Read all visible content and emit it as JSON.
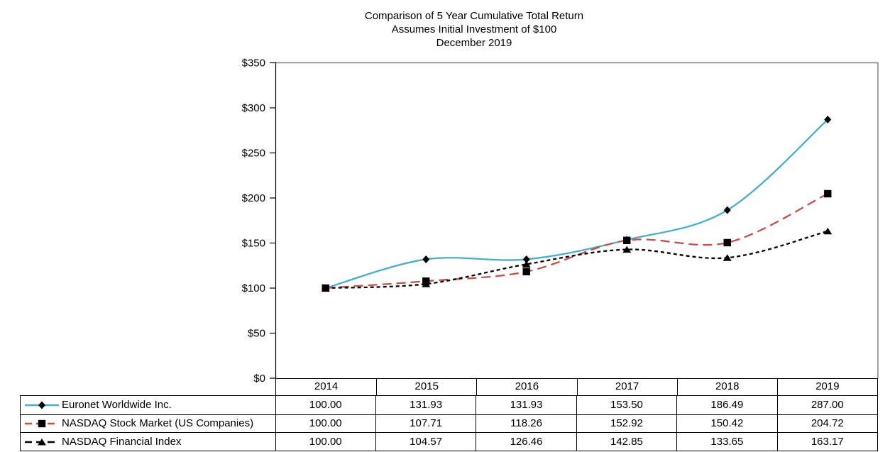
{
  "title": {
    "line1": "Comparison of 5 Year Cumulative Total Return",
    "line2": "Assumes Initial Investment of $100",
    "line3": "December 2019"
  },
  "chart_data": {
    "type": "line",
    "categories": [
      "2014",
      "2015",
      "2016",
      "2017",
      "2018",
      "2019"
    ],
    "series": [
      {
        "name": "Euronet Worldwide Inc.",
        "values": [
          100.0,
          131.93,
          131.93,
          153.5,
          186.49,
          287.0
        ],
        "color": "#4BACC6",
        "dash": "solid",
        "marker": "diamond"
      },
      {
        "name": "NASDAQ Stock Market (US Companies)",
        "values": [
          100.0,
          107.71,
          118.26,
          152.92,
          150.42,
          204.72
        ],
        "color": "#C0504D",
        "dash": "long-dash",
        "marker": "square"
      },
      {
        "name": "NASDAQ Financial Index",
        "values": [
          100.0,
          104.57,
          126.46,
          142.85,
          133.65,
          163.17
        ],
        "color": "#000000",
        "dash": "short-dash",
        "marker": "triangle"
      }
    ],
    "y_axis": {
      "min": 0,
      "max": 350,
      "step": 50,
      "tick_labels": [
        "$0",
        "$50",
        "$100",
        "$150",
        "$200",
        "$250",
        "$300",
        "$350"
      ]
    },
    "marker_color": "#000000",
    "axis_color": "#000000",
    "plot_border_color": "#808080",
    "grid": false,
    "legend_position": "table-left",
    "value_decimals": 2
  }
}
